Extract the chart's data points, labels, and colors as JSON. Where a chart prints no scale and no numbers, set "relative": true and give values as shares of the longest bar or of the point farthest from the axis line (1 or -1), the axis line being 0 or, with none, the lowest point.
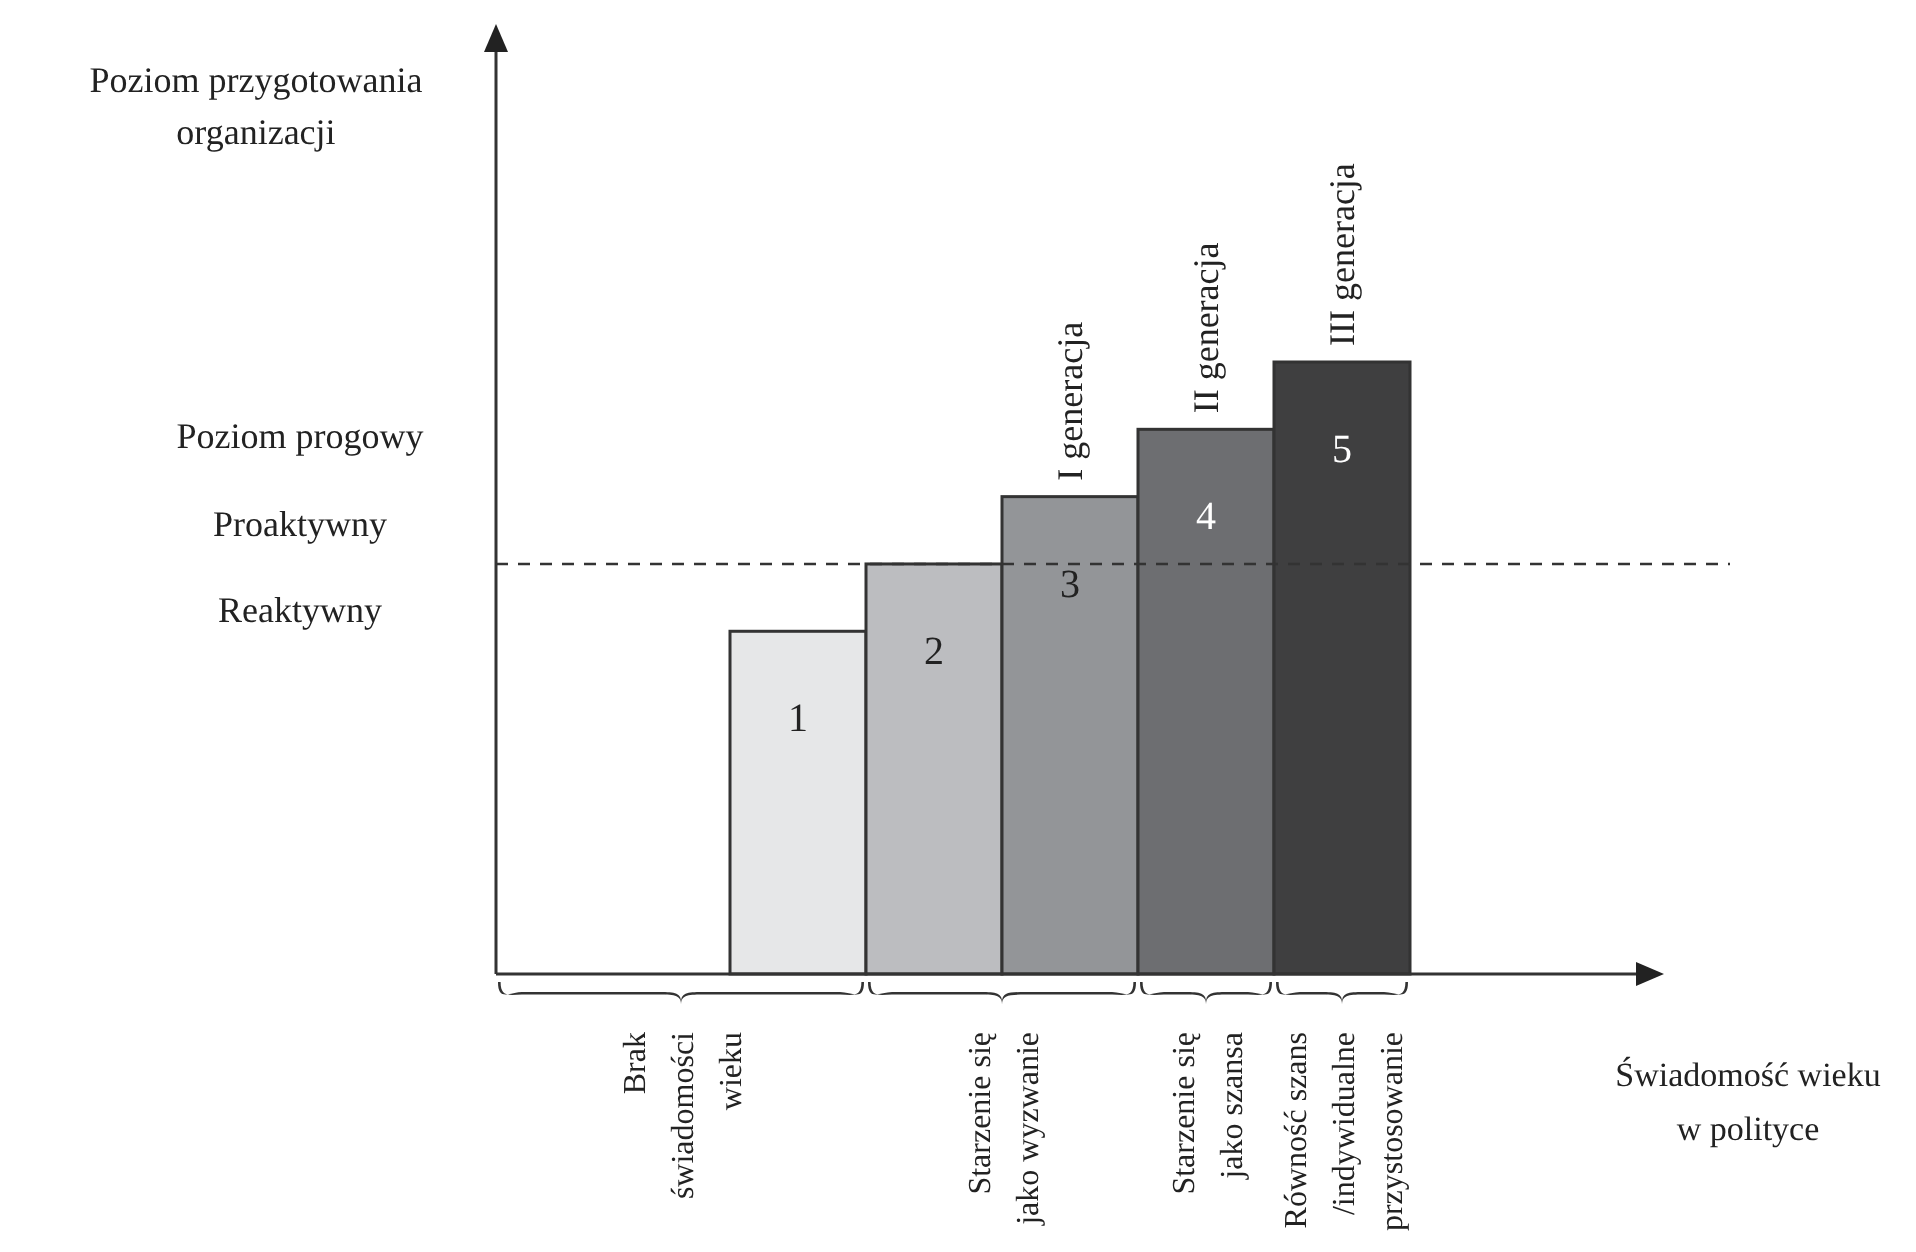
{
  "chart_data": {
    "type": "bar",
    "relative": true,
    "categories": [
      "1",
      "2",
      "3",
      "4",
      "5"
    ],
    "values": [
      0.56,
      0.67,
      0.78,
      0.89,
      1.0
    ],
    "colors": [
      "#e6e7e8",
      "#bcbdc0",
      "#939598",
      "#6d6e71",
      "#3f3f40"
    ],
    "ref_lines": [
      {
        "axis": "y",
        "value": 0.67,
        "line_style": "dashed"
      }
    ],
    "annotations": [
      "Poziom przygotowania organizacji",
      "Świadomość wieku w polityce",
      "Poziom progowy",
      "Proaktywny",
      "Reaktywny",
      {
        "text": "I generacja",
        "x": "3",
        "y": 0.78
      },
      {
        "text": "II generacja",
        "x": "4",
        "y": 0.89
      },
      {
        "text": "III generacja",
        "x": "5",
        "y": 1.0
      },
      "Brak świadomości wieku",
      "Starzenie się jako wyzwanie",
      "Starzenie się jako szansa",
      "Równość szans /indywidualne przystosowanie"
    ]
  }
}
